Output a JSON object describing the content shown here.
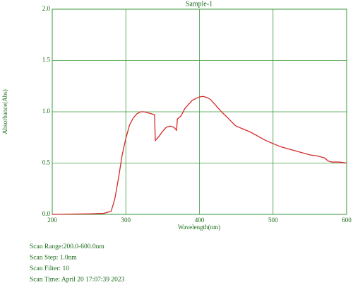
{
  "chart_data": {
    "type": "line",
    "title": "Sample-1",
    "x_label": "Wavelength(nm)",
    "y_label": "Absorbance(Abs)",
    "x": [
      200,
      250,
      270,
      280,
      285,
      290,
      295,
      300,
      305,
      310,
      315,
      320,
      325,
      330,
      335,
      339,
      340,
      345,
      350,
      355,
      360,
      365,
      369,
      370,
      375,
      380,
      385,
      390,
      395,
      400,
      405,
      410,
      415,
      420,
      430,
      440,
      448,
      450,
      460,
      470,
      480,
      490,
      500,
      510,
      520,
      530,
      540,
      550,
      560,
      570,
      575,
      580,
      590,
      600
    ],
    "values": [
      0.0,
      0.005,
      0.01,
      0.03,
      0.15,
      0.35,
      0.58,
      0.74,
      0.87,
      0.94,
      0.98,
      1.0,
      1.0,
      0.99,
      0.98,
      0.97,
      0.72,
      0.76,
      0.81,
      0.85,
      0.86,
      0.85,
      0.82,
      0.93,
      0.96,
      1.03,
      1.07,
      1.11,
      1.13,
      1.145,
      1.15,
      1.14,
      1.12,
      1.08,
      1.0,
      0.93,
      0.87,
      0.86,
      0.83,
      0.8,
      0.76,
      0.72,
      0.69,
      0.66,
      0.64,
      0.62,
      0.6,
      0.58,
      0.57,
      0.55,
      0.52,
      0.51,
      0.51,
      0.5
    ],
    "color": "#d42a2a",
    "xlim": [
      200,
      600
    ],
    "xticks": [
      200,
      300,
      400,
      500,
      600
    ],
    "ylim": [
      0,
      2
    ],
    "yticks": [
      {
        "value": 0,
        "label": "0.0"
      },
      {
        "value": 0.5,
        "label": "0.5"
      },
      {
        "value": 1,
        "label": "1.0"
      },
      {
        "value": 1.5,
        "label": "1.5"
      },
      {
        "value": 2,
        "label": "2.0"
      }
    ],
    "grid": true,
    "annotations": [
      "Scan Range:200.0-600.0nm",
      "Scan Step:  1.0nm",
      "Scan Filter:  10",
      "Scan Time:  April 20 17:07:39 2023"
    ]
  }
}
